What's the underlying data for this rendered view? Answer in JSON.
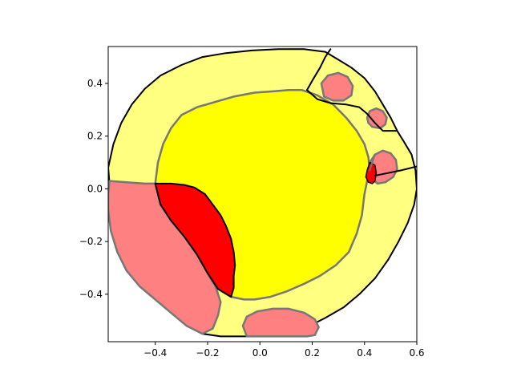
{
  "chart_data": {
    "type": "area",
    "title": "",
    "xlabel": "",
    "ylabel": "",
    "xlim": [
      -0.58,
      0.6
    ],
    "ylim": [
      -0.58,
      0.54
    ],
    "grid": false,
    "legend": "none",
    "xticks": [
      {
        "value": -0.4,
        "label": "−0.4"
      },
      {
        "value": -0.2,
        "label": "−0.2"
      },
      {
        "value": 0.0,
        "label": "0.0"
      },
      {
        "value": 0.2,
        "label": "0.2"
      },
      {
        "value": 0.4,
        "label": "0.4"
      },
      {
        "value": 0.6,
        "label": "0.6"
      }
    ],
    "yticks": [
      {
        "value": -0.4,
        "label": "−0.4"
      },
      {
        "value": -0.2,
        "label": "−0.2"
      },
      {
        "value": 0.0,
        "label": "0.0"
      },
      {
        "value": 0.2,
        "label": "0.2"
      },
      {
        "value": 0.4,
        "label": "0.4"
      }
    ],
    "colors": {
      "light_yellow": "#ffff80",
      "yellow": "#ffff00",
      "light_red": "#ff8080",
      "red": "#ff0000",
      "outline_dark": "#000000",
      "outline_gray": "#777777"
    },
    "regions": [
      {
        "id": "outer-ring",
        "fill": "light_yellow",
        "stroke": "outline_dark",
        "stroke_width": 2,
        "points": [
          [
            -0.575,
            0.02
          ],
          [
            -0.58,
            0.08
          ],
          [
            -0.56,
            0.17
          ],
          [
            -0.53,
            0.25
          ],
          [
            -0.49,
            0.32
          ],
          [
            -0.44,
            0.38
          ],
          [
            -0.38,
            0.43
          ],
          [
            -0.3,
            0.47
          ],
          [
            -0.22,
            0.5
          ],
          [
            -0.13,
            0.515
          ],
          [
            -0.03,
            0.525
          ],
          [
            0.07,
            0.53
          ],
          [
            0.17,
            0.53
          ],
          [
            0.25,
            0.52
          ],
          [
            0.3,
            0.49
          ],
          [
            0.35,
            0.46
          ],
          [
            0.4,
            0.42
          ],
          [
            0.44,
            0.37
          ],
          [
            0.47,
            0.32
          ],
          [
            0.5,
            0.27
          ],
          [
            0.525,
            0.22
          ],
          [
            0.55,
            0.18
          ],
          [
            0.58,
            0.13
          ],
          [
            0.595,
            0.07
          ],
          [
            0.6,
            0.0
          ],
          [
            0.59,
            -0.06
          ],
          [
            0.565,
            -0.13
          ],
          [
            0.53,
            -0.2
          ],
          [
            0.49,
            -0.27
          ],
          [
            0.44,
            -0.34
          ],
          [
            0.38,
            -0.4
          ],
          [
            0.32,
            -0.45
          ],
          [
            0.25,
            -0.49
          ],
          [
            0.19,
            -0.52
          ],
          [
            0.13,
            -0.545
          ],
          [
            0.06,
            -0.555
          ],
          [
            -0.02,
            -0.56
          ],
          [
            -0.09,
            -0.56
          ],
          [
            -0.15,
            -0.56
          ],
          [
            -0.22,
            -0.55
          ],
          [
            -0.28,
            -0.52
          ],
          [
            -0.34,
            -0.47
          ],
          [
            -0.4,
            -0.42
          ],
          [
            -0.46,
            -0.37
          ],
          [
            -0.51,
            -0.31
          ],
          [
            -0.545,
            -0.24
          ],
          [
            -0.57,
            -0.16
          ],
          [
            -0.58,
            -0.08
          ],
          [
            -0.58,
            -0.02
          ]
        ]
      },
      {
        "id": "inner-core",
        "fill": "yellow",
        "stroke": "outline_gray",
        "stroke_width": 2.5,
        "points": [
          [
            -0.4,
            0.02
          ],
          [
            -0.39,
            0.1
          ],
          [
            -0.37,
            0.17
          ],
          [
            -0.34,
            0.23
          ],
          [
            -0.3,
            0.28
          ],
          [
            -0.24,
            0.31
          ],
          [
            -0.17,
            0.33
          ],
          [
            -0.1,
            0.35
          ],
          [
            -0.02,
            0.365
          ],
          [
            0.05,
            0.37
          ],
          [
            0.11,
            0.375
          ],
          [
            0.16,
            0.375
          ],
          [
            0.22,
            0.355
          ],
          [
            0.28,
            0.32
          ],
          [
            0.33,
            0.27
          ],
          [
            0.37,
            0.22
          ],
          [
            0.4,
            0.17
          ],
          [
            0.415,
            0.12
          ],
          [
            0.42,
            0.07
          ],
          [
            0.41,
            0.03
          ],
          [
            0.4,
            -0.02
          ],
          [
            0.39,
            -0.1
          ],
          [
            0.37,
            -0.17
          ],
          [
            0.34,
            -0.24
          ],
          [
            0.29,
            -0.29
          ],
          [
            0.23,
            -0.33
          ],
          [
            0.17,
            -0.36
          ],
          [
            0.1,
            -0.39
          ],
          [
            0.04,
            -0.41
          ],
          [
            -0.02,
            -0.42
          ],
          [
            -0.06,
            -0.42
          ],
          [
            -0.11,
            -0.41
          ],
          [
            -0.16,
            -0.38
          ],
          [
            -0.2,
            -0.32
          ],
          [
            -0.24,
            -0.25
          ],
          [
            -0.29,
            -0.18
          ],
          [
            -0.34,
            -0.12
          ],
          [
            -0.38,
            -0.06
          ]
        ]
      },
      {
        "id": "left-lobe",
        "fill": "light_red",
        "stroke": "outline_gray",
        "stroke_width": 2.5,
        "points": [
          [
            -0.575,
            0.03
          ],
          [
            -0.51,
            0.025
          ],
          [
            -0.44,
            0.02
          ],
          [
            -0.4,
            0.02
          ],
          [
            -0.38,
            -0.06
          ],
          [
            -0.34,
            -0.12
          ],
          [
            -0.29,
            -0.18
          ],
          [
            -0.24,
            -0.25
          ],
          [
            -0.2,
            -0.32
          ],
          [
            -0.17,
            -0.37
          ],
          [
            -0.15,
            -0.43
          ],
          [
            -0.16,
            -0.48
          ],
          [
            -0.18,
            -0.53
          ],
          [
            -0.22,
            -0.55
          ],
          [
            -0.28,
            -0.52
          ],
          [
            -0.34,
            -0.47
          ],
          [
            -0.4,
            -0.42
          ],
          [
            -0.46,
            -0.37
          ],
          [
            -0.51,
            -0.31
          ],
          [
            -0.545,
            -0.24
          ],
          [
            -0.57,
            -0.16
          ],
          [
            -0.58,
            -0.08
          ],
          [
            -0.58,
            -0.02
          ]
        ]
      },
      {
        "id": "dark-red-wedge",
        "fill": "red",
        "stroke": "outline_dark",
        "stroke_width": 2,
        "points": [
          [
            -0.4,
            0.02
          ],
          [
            -0.34,
            0.02
          ],
          [
            -0.29,
            0.015
          ],
          [
            -0.25,
            0.005
          ],
          [
            -0.21,
            -0.02
          ],
          [
            -0.18,
            -0.06
          ],
          [
            -0.15,
            -0.1
          ],
          [
            -0.13,
            -0.14
          ],
          [
            -0.11,
            -0.19
          ],
          [
            -0.1,
            -0.24
          ],
          [
            -0.095,
            -0.29
          ],
          [
            -0.1,
            -0.33
          ],
          [
            -0.1,
            -0.375
          ],
          [
            -0.11,
            -0.41
          ],
          [
            -0.16,
            -0.38
          ],
          [
            -0.2,
            -0.32
          ],
          [
            -0.24,
            -0.25
          ],
          [
            -0.29,
            -0.18
          ],
          [
            -0.34,
            -0.12
          ],
          [
            -0.38,
            -0.06
          ]
        ]
      },
      {
        "id": "bottom-blob",
        "fill": "light_red",
        "stroke": "outline_gray",
        "stroke_width": 2.5,
        "points": [
          [
            -0.05,
            -0.56
          ],
          [
            -0.065,
            -0.52
          ],
          [
            -0.05,
            -0.485
          ],
          [
            -0.01,
            -0.465
          ],
          [
            0.05,
            -0.455
          ],
          [
            0.11,
            -0.455
          ],
          [
            0.17,
            -0.47
          ],
          [
            0.21,
            -0.495
          ],
          [
            0.225,
            -0.525
          ],
          [
            0.21,
            -0.555
          ],
          [
            0.18,
            -0.56
          ],
          [
            0.1,
            -0.56
          ],
          [
            0.02,
            -0.56
          ]
        ]
      },
      {
        "id": "top-right-blob",
        "fill": "light_red",
        "stroke": "outline_gray",
        "stroke_width": 2.5,
        "points": [
          [
            0.235,
            0.4
          ],
          [
            0.26,
            0.43
          ],
          [
            0.3,
            0.44
          ],
          [
            0.335,
            0.425
          ],
          [
            0.355,
            0.39
          ],
          [
            0.35,
            0.355
          ],
          [
            0.32,
            0.335
          ],
          [
            0.28,
            0.335
          ],
          [
            0.245,
            0.35
          ]
        ]
      },
      {
        "id": "small-blob",
        "fill": "light_red",
        "stroke": "outline_gray",
        "stroke_width": 2.5,
        "points": [
          [
            0.41,
            0.27
          ],
          [
            0.42,
            0.295
          ],
          [
            0.445,
            0.305
          ],
          [
            0.47,
            0.295
          ],
          [
            0.485,
            0.27
          ],
          [
            0.48,
            0.245
          ],
          [
            0.46,
            0.23
          ],
          [
            0.43,
            0.235
          ],
          [
            0.415,
            0.25
          ]
        ]
      },
      {
        "id": "right-blob",
        "fill": "light_red",
        "stroke": "outline_gray",
        "stroke_width": 2.5,
        "points": [
          [
            0.42,
            0.1
          ],
          [
            0.44,
            0.13
          ],
          [
            0.47,
            0.145
          ],
          [
            0.5,
            0.135
          ],
          [
            0.52,
            0.11
          ],
          [
            0.525,
            0.075
          ],
          [
            0.51,
            0.045
          ],
          [
            0.48,
            0.025
          ],
          [
            0.45,
            0.02
          ],
          [
            0.43,
            0.035
          ],
          [
            0.415,
            0.065
          ]
        ]
      },
      {
        "id": "right-red-sliver",
        "fill": "red",
        "stroke": "outline_dark",
        "stroke_width": 1.5,
        "points": [
          [
            0.42,
            0.1
          ],
          [
            0.41,
            0.07
          ],
          [
            0.405,
            0.045
          ],
          [
            0.415,
            0.025
          ],
          [
            0.43,
            0.02
          ],
          [
            0.44,
            0.03
          ],
          [
            0.445,
            0.06
          ],
          [
            0.44,
            0.09
          ]
        ]
      }
    ],
    "boundaries": [
      {
        "id": "top-divider",
        "color": "outline_dark",
        "width": 2,
        "points": [
          [
            0.18,
            0.375
          ],
          [
            0.2,
            0.41
          ],
          [
            0.23,
            0.46
          ],
          [
            0.25,
            0.5
          ],
          [
            0.27,
            0.53
          ]
        ]
      },
      {
        "id": "top-right-divider",
        "color": "outline_dark",
        "width": 2,
        "points": [
          [
            0.18,
            0.375
          ],
          [
            0.22,
            0.34
          ],
          [
            0.27,
            0.325
          ],
          [
            0.33,
            0.32
          ],
          [
            0.38,
            0.31
          ],
          [
            0.41,
            0.285
          ],
          [
            0.44,
            0.25
          ],
          [
            0.47,
            0.22
          ],
          [
            0.5,
            0.22
          ],
          [
            0.525,
            0.22
          ]
        ]
      },
      {
        "id": "right-divider",
        "color": "outline_dark",
        "width": 2,
        "points": [
          [
            0.44,
            0.05
          ],
          [
            0.49,
            0.06
          ],
          [
            0.54,
            0.07
          ],
          [
            0.6,
            0.085
          ]
        ]
      },
      {
        "id": "inner-upper-boundary",
        "color": "outline_gray",
        "width": 2,
        "points": [
          [
            0.42,
            0.07
          ],
          [
            0.43,
            0.1
          ],
          [
            0.44,
            0.13
          ]
        ]
      }
    ]
  }
}
